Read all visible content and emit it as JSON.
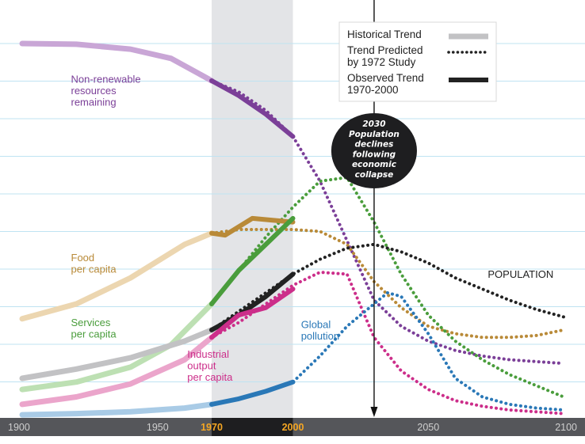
{
  "chart_data": {
    "type": "line",
    "xlim": [
      1900,
      2100
    ],
    "ylim": [
      0,
      100
    ],
    "x_ticks": [
      {
        "value": 1900,
        "label": "1900",
        "color": "#cfcfcf"
      },
      {
        "value": 1950,
        "label": "1950",
        "color": "#cfcfcf"
      },
      {
        "value": 1970,
        "label": "1970",
        "color": "#f5a623"
      },
      {
        "value": 2000,
        "label": "2000",
        "color": "#f5a623"
      },
      {
        "value": 2050,
        "label": "2050",
        "color": "#cfcfcf"
      },
      {
        "value": 2100,
        "label": "2100",
        "color": "#cfcfcf"
      }
    ],
    "grid": "horizontal",
    "highlight_period": [
      1970,
      2000
    ],
    "marker_year": 2030,
    "callout": {
      "lines": [
        "2030",
        "Population",
        "declines",
        "following",
        "economic",
        "collapse"
      ]
    },
    "legend": {
      "position": "top-right",
      "entries": [
        {
          "label": [
            "Historical Trend"
          ],
          "style": "historical"
        },
        {
          "label": [
            "Trend Predicted",
            "by 1972 Study"
          ],
          "style": "predicted"
        },
        {
          "label": [
            "Observed Trend",
            "1970-2000"
          ],
          "style": "observed"
        }
      ]
    },
    "series": [
      {
        "key": "nonrenewable",
        "name": [
          "Non-renewable",
          "resources",
          "remaining"
        ],
        "color": "#7b3f98",
        "light": "#c9a6d6",
        "label_pos": [
          1918,
          89.5
        ],
        "label_color": "#7b3f98",
        "historical": [
          [
            1900,
            100
          ],
          [
            1920,
            99.8
          ],
          [
            1940,
            98.5
          ],
          [
            1955,
            96
          ],
          [
            1965,
            92
          ],
          [
            1970,
            90
          ]
        ],
        "observed": [
          [
            1970,
            90
          ],
          [
            1980,
            86
          ],
          [
            1990,
            81
          ],
          [
            2000,
            75
          ]
        ],
        "predicted": [
          [
            1970,
            90
          ],
          [
            1980,
            87
          ],
          [
            1990,
            82
          ],
          [
            2000,
            75
          ],
          [
            2010,
            63
          ],
          [
            2020,
            47
          ],
          [
            2030,
            31
          ],
          [
            2040,
            24
          ],
          [
            2050,
            20
          ],
          [
            2060,
            17.5
          ],
          [
            2070,
            16
          ],
          [
            2080,
            15
          ],
          [
            2090,
            14.5
          ],
          [
            2100,
            14
          ]
        ]
      },
      {
        "key": "food",
        "name": [
          "Food",
          "per capita"
        ],
        "color": "#b98a38",
        "light": "#ecd6b0",
        "label_pos": [
          1918,
          41.5
        ],
        "label_color": "#b98a38",
        "historical": [
          [
            1900,
            26
          ],
          [
            1920,
            30
          ],
          [
            1940,
            37
          ],
          [
            1960,
            46
          ],
          [
            1970,
            49
          ]
        ],
        "observed": [
          [
            1970,
            49
          ],
          [
            1975,
            48.5
          ],
          [
            1985,
            53
          ],
          [
            2000,
            52
          ]
        ],
        "predicted": [
          [
            1970,
            49
          ],
          [
            1980,
            50
          ],
          [
            1990,
            50
          ],
          [
            2000,
            50
          ],
          [
            2010,
            49.5
          ],
          [
            2020,
            46
          ],
          [
            2030,
            36
          ],
          [
            2040,
            29
          ],
          [
            2050,
            24
          ],
          [
            2060,
            22
          ],
          [
            2070,
            21
          ],
          [
            2080,
            21
          ],
          [
            2090,
            21.5
          ],
          [
            2100,
            23
          ]
        ]
      },
      {
        "key": "services",
        "name": [
          "Services",
          "per capita"
        ],
        "color": "#4a9d3c",
        "light": "#bde0b3",
        "label_pos": [
          1918,
          24
        ],
        "label_color": "#4a9d3c",
        "historical": [
          [
            1900,
            7
          ],
          [
            1920,
            9
          ],
          [
            1940,
            13
          ],
          [
            1955,
            19
          ],
          [
            1970,
            30
          ]
        ],
        "observed": [
          [
            1970,
            30
          ],
          [
            1980,
            39
          ],
          [
            1990,
            46
          ],
          [
            2000,
            53
          ]
        ],
        "predicted": [
          [
            1970,
            30
          ],
          [
            1980,
            39
          ],
          [
            1990,
            48
          ],
          [
            2000,
            56
          ],
          [
            2010,
            63
          ],
          [
            2020,
            64
          ],
          [
            2030,
            52
          ],
          [
            2040,
            38
          ],
          [
            2050,
            27
          ],
          [
            2060,
            20
          ],
          [
            2070,
            15
          ],
          [
            2080,
            11
          ],
          [
            2090,
            8
          ],
          [
            2100,
            5
          ]
        ]
      },
      {
        "key": "population",
        "name": [
          "POPULATION"
        ],
        "color": "#222222",
        "light": "#c2c2c4",
        "label_pos": [
          2072,
          37
        ],
        "label_color": "#222222",
        "historical": [
          [
            1900,
            10
          ],
          [
            1920,
            12.5
          ],
          [
            1940,
            15.5
          ],
          [
            1960,
            20
          ],
          [
            1970,
            23
          ]
        ],
        "observed": [
          [
            1970,
            23
          ],
          [
            1980,
            27
          ],
          [
            1990,
            32
          ],
          [
            2000,
            38
          ]
        ],
        "predicted": [
          [
            1970,
            23
          ],
          [
            1980,
            28
          ],
          [
            1990,
            33
          ],
          [
            2000,
            38
          ],
          [
            2010,
            42
          ],
          [
            2020,
            45
          ],
          [
            2030,
            46
          ],
          [
            2040,
            44
          ],
          [
            2050,
            41
          ],
          [
            2060,
            37
          ],
          [
            2070,
            34
          ],
          [
            2080,
            31
          ],
          [
            2090,
            28.5
          ],
          [
            2100,
            26.5
          ]
        ]
      },
      {
        "key": "industrial",
        "name": [
          "Industrial",
          "output",
          "per capita"
        ],
        "color": "#cc2e8a",
        "light": "#eba5cb",
        "label_pos": [
          1961,
          15.5
        ],
        "label_color": "#cc2e8a",
        "historical": [
          [
            1900,
            3
          ],
          [
            1920,
            5
          ],
          [
            1940,
            8.5
          ],
          [
            1960,
            15
          ],
          [
            1970,
            21
          ]
        ],
        "observed": [
          [
            1970,
            21
          ],
          [
            1980,
            27
          ],
          [
            1990,
            29
          ],
          [
            2000,
            34
          ]
        ],
        "predicted": [
          [
            1970,
            21
          ],
          [
            1980,
            25
          ],
          [
            1990,
            30
          ],
          [
            2000,
            35
          ],
          [
            2010,
            38.5
          ],
          [
            2020,
            38
          ],
          [
            2030,
            21
          ],
          [
            2040,
            12
          ],
          [
            2050,
            7
          ],
          [
            2060,
            4
          ],
          [
            2070,
            2.5
          ],
          [
            2080,
            1.5
          ],
          [
            2090,
            1
          ],
          [
            2100,
            0.5
          ]
        ]
      },
      {
        "key": "pollution",
        "name": [
          "Global",
          "pollution"
        ],
        "color": "#2a78b7",
        "light": "#a9cbe6",
        "label_pos": [
          2003,
          23.5
        ],
        "label_color": "#2a78b7",
        "historical": [
          [
            1900,
            0.2
          ],
          [
            1920,
            0.5
          ],
          [
            1940,
            1
          ],
          [
            1960,
            2
          ],
          [
            1970,
            3
          ]
        ],
        "observed": [
          [
            1970,
            3
          ],
          [
            1980,
            4.5
          ],
          [
            1990,
            6.5
          ],
          [
            2000,
            9
          ]
        ],
        "predicted": [
          [
            1970,
            3
          ],
          [
            1980,
            4.5
          ],
          [
            1990,
            6.5
          ],
          [
            2000,
            9
          ],
          [
            2010,
            16
          ],
          [
            2020,
            24
          ],
          [
            2030,
            30
          ],
          [
            2035,
            33
          ],
          [
            2040,
            32
          ],
          [
            2050,
            22
          ],
          [
            2060,
            10
          ],
          [
            2070,
            5
          ],
          [
            2080,
            3
          ],
          [
            2090,
            2
          ],
          [
            2100,
            1.5
          ]
        ]
      }
    ]
  }
}
